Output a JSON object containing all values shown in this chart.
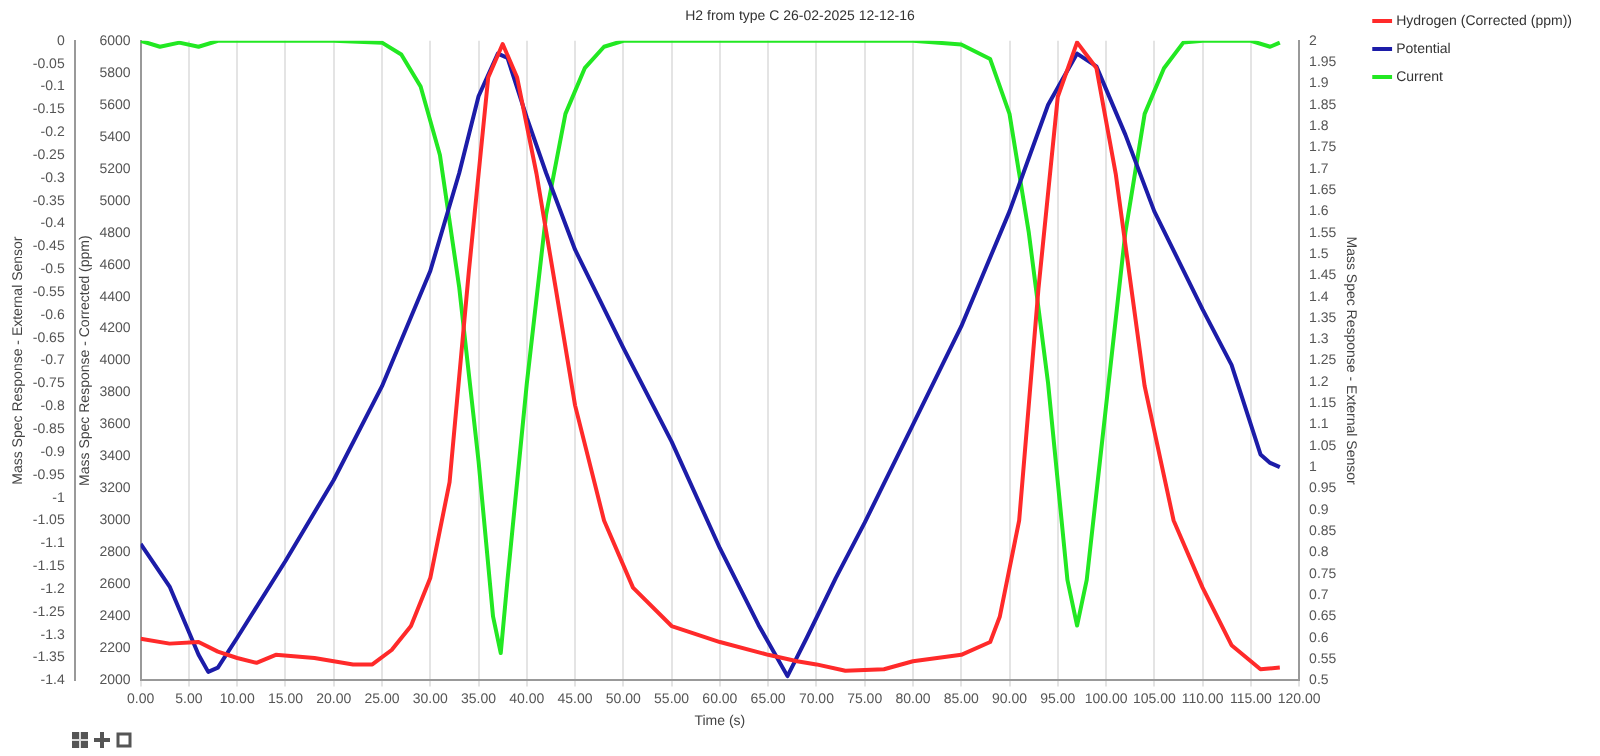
{
  "chart_data": {
    "type": "line",
    "title": "H2 from type C 26-02-2025 12-12-16",
    "xlabel": "Time (s)",
    "ylabel": "Mass Spec Response - Corrected (ppm)",
    "y2label": "Mass Spec Response - External Sensor",
    "y3label": "Mass Spec Response - External Sensor",
    "xlim": [
      0,
      120
    ],
    "xticks": [
      {
        "value": 0,
        "label": "0.00"
      },
      {
        "value": 5,
        "label": "5.00"
      },
      {
        "value": 10,
        "label": "10.00"
      },
      {
        "value": 15,
        "label": "15.00"
      },
      {
        "value": 20,
        "label": "20.00"
      },
      {
        "value": 25,
        "label": "25.00"
      },
      {
        "value": 30,
        "label": "30.00"
      },
      {
        "value": 35,
        "label": "35.00"
      },
      {
        "value": 40,
        "label": "40.00"
      },
      {
        "value": 45,
        "label": "45.00"
      },
      {
        "value": 50,
        "label": "50.00"
      },
      {
        "value": 55,
        "label": "55.00"
      },
      {
        "value": 60,
        "label": "60.00"
      },
      {
        "value": 65,
        "label": "65.00"
      },
      {
        "value": 70,
        "label": "70.00"
      },
      {
        "value": 75,
        "label": "75.00"
      },
      {
        "value": 80,
        "label": "80.00"
      },
      {
        "value": 85,
        "label": "85.00"
      },
      {
        "value": 90,
        "label": "90.00"
      },
      {
        "value": 95,
        "label": "95.00"
      },
      {
        "value": 100,
        "label": "100.00"
      },
      {
        "value": 105,
        "label": "105.00"
      },
      {
        "value": 110,
        "label": "110.00"
      },
      {
        "value": 115,
        "label": "115.00"
      },
      {
        "value": 120,
        "label": "120.00"
      }
    ],
    "ylim": [
      2000,
      6000
    ],
    "yticks": [
      2000,
      2200,
      2400,
      2600,
      2800,
      3000,
      3200,
      3400,
      3600,
      3800,
      4000,
      4200,
      4400,
      4600,
      4800,
      5000,
      5200,
      5400,
      5600,
      5800,
      6000
    ],
    "y2lim": [
      0.5,
      2
    ],
    "y2ticks": [
      0.5,
      0.55,
      0.6,
      0.65,
      0.7,
      0.75,
      0.8,
      0.85,
      0.9,
      0.95,
      1,
      1.05,
      1.1,
      1.15,
      1.2,
      1.25,
      1.3,
      1.35,
      1.4,
      1.45,
      1.5,
      1.55,
      1.6,
      1.65,
      1.7,
      1.75,
      1.8,
      1.85,
      1.9,
      1.95,
      2
    ],
    "y3lim": [
      -1.4,
      0
    ],
    "y3ticks": [
      -1.4,
      -1.35,
      -1.3,
      -1.25,
      -1.2,
      -1.15,
      -1.1,
      -1.05,
      -1,
      -0.95,
      -0.9,
      -0.85,
      -0.8,
      -0.75,
      -0.7,
      -0.65,
      -0.6,
      -0.55,
      -0.5,
      -0.45,
      -0.4,
      -0.35,
      -0.3,
      -0.25,
      -0.2,
      -0.15,
      -0.1,
      -0.05,
      0
    ],
    "grid": "x",
    "legend": "top right",
    "series": [
      {
        "name": "Hydrogen (Corrected (ppm))",
        "color": "#ff2a2a",
        "x": [
          0,
          3,
          6,
          8,
          10,
          12,
          14,
          18,
          22,
          24,
          26,
          28,
          30,
          32,
          34,
          36,
          37.5,
          39,
          41,
          43,
          45,
          48,
          51,
          55,
          60,
          65,
          68,
          70,
          73,
          77,
          80,
          85,
          88,
          89,
          91,
          93,
          95,
          97,
          99,
          101,
          104,
          107,
          110,
          113,
          116,
          118
        ],
        "values": [
          2260,
          2230,
          2240,
          2180,
          2140,
          2110,
          2160,
          2140,
          2100,
          2100,
          2190,
          2340,
          2640,
          3240,
          4560,
          5770,
          5980,
          5770,
          5170,
          4450,
          3720,
          3000,
          2580,
          2340,
          2240,
          2160,
          2120,
          2100,
          2060,
          2070,
          2120,
          2160,
          2240,
          2400,
          3000,
          4450,
          5650,
          5990,
          5830,
          5170,
          3840,
          3000,
          2580,
          2220,
          2070,
          2080
        ]
      },
      {
        "name": "Potential",
        "color": "#1c1ca8",
        "axis": "y2",
        "x": [
          0,
          3,
          6,
          7,
          8,
          10,
          15,
          20,
          25,
          30,
          33,
          35,
          37,
          38,
          40,
          42,
          45,
          50,
          55,
          60,
          64,
          67,
          69,
          72,
          75,
          80,
          85,
          90,
          94,
          97,
          99,
          102,
          105,
          110,
          113,
          116,
          117,
          118
        ],
        "values": [
          0.82,
          0.72,
          0.56,
          0.52,
          0.53,
          0.6,
          0.78,
          0.97,
          1.19,
          1.46,
          1.69,
          1.87,
          1.97,
          1.96,
          1.82,
          1.69,
          1.51,
          1.28,
          1.06,
          0.81,
          0.63,
          0.51,
          0.6,
          0.74,
          0.87,
          1.1,
          1.33,
          1.6,
          1.85,
          1.97,
          1.94,
          1.78,
          1.6,
          1.37,
          1.24,
          1.03,
          1.01,
          1
        ]
      },
      {
        "name": "Current",
        "color": "#22e822",
        "axis": "y3",
        "x": [
          0,
          2,
          4,
          6,
          8,
          20,
          25,
          27,
          29,
          31,
          33,
          35,
          36.5,
          37.3,
          38,
          40,
          42,
          44,
          46,
          48,
          50,
          60,
          70,
          80,
          85,
          88,
          90,
          92,
          94,
          96,
          97,
          98,
          100,
          102,
          104,
          106,
          108,
          110,
          115,
          117,
          118
        ],
        "values": [
          0,
          -0.013,
          -0.004,
          -0.013,
          0,
          0,
          -0.004,
          -0.03,
          -0.1,
          -0.25,
          -0.54,
          -0.92,
          -1.26,
          -1.34,
          -1.18,
          -0.75,
          -0.38,
          -0.16,
          -0.06,
          -0.013,
          0,
          0,
          0,
          0,
          -0.008,
          -0.04,
          -0.16,
          -0.42,
          -0.75,
          -1.18,
          -1.28,
          -1.18,
          -0.8,
          -0.42,
          -0.16,
          -0.06,
          -0.004,
          0,
          0,
          -0.013,
          -0.004
        ]
      }
    ]
  }
}
